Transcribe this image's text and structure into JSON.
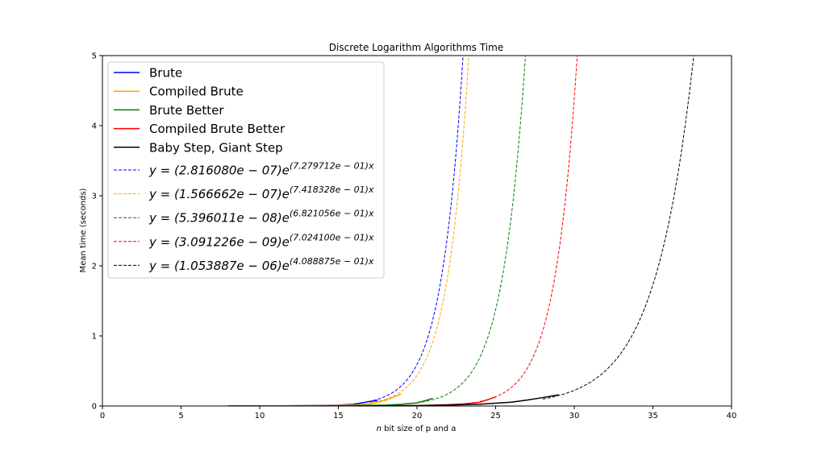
{
  "chart_data": {
    "type": "line",
    "title": "Discrete Logarithm Algorithms Time",
    "xlabel_italic": "n",
    "xlabel": " bit size of p and a",
    "ylabel": "Mean time (seconds)",
    "xlim": [
      0,
      40
    ],
    "ylim": [
      0,
      5
    ],
    "xticks": [
      "0",
      "5",
      "10",
      "15",
      "20",
      "25",
      "30",
      "35",
      "40"
    ],
    "yticks": [
      "0",
      "1",
      "2",
      "3",
      "4",
      "5"
    ],
    "grid": false,
    "legend_position": "top-left",
    "series": [
      {
        "name": "Brute",
        "color": "#0000ff",
        "style": "solid",
        "x": [
          8,
          10,
          12,
          14,
          15,
          16,
          16.5,
          17,
          17.5
        ],
        "y": [
          0.0008,
          0.0018,
          0.004,
          0.008,
          0.013,
          0.025,
          0.045,
          0.065,
          0.08
        ]
      },
      {
        "name": "Compiled Brute",
        "color": "#ffa500",
        "style": "solid",
        "x": [
          10,
          12,
          14,
          16,
          17,
          18,
          19
        ],
        "y": [
          0.0006,
          0.002,
          0.006,
          0.015,
          0.03,
          0.08,
          0.17
        ]
      },
      {
        "name": "Brute Better",
        "color": "#008000",
        "style": "solid",
        "x": [
          12,
          14,
          16,
          18,
          19,
          20,
          20.5,
          21
        ],
        "y": [
          0.0005,
          0.002,
          0.006,
          0.013,
          0.025,
          0.045,
          0.075,
          0.11
        ]
      },
      {
        "name": "Compiled Brute Better",
        "color": "#ff0000",
        "style": "solid",
        "x": [
          16,
          18,
          20,
          22,
          23,
          24,
          24.5,
          25
        ],
        "y": [
          0.0004,
          0.002,
          0.006,
          0.018,
          0.03,
          0.055,
          0.09,
          0.13
        ]
      },
      {
        "name": "Baby Step, Giant Step",
        "color": "#000000",
        "style": "solid",
        "x": [
          16,
          18,
          20,
          22,
          24,
          26,
          27,
          28,
          29
        ],
        "y": [
          0.001,
          0.003,
          0.006,
          0.013,
          0.026,
          0.055,
          0.085,
          0.12,
          0.16
        ]
      }
    ],
    "fits": [
      {
        "label_pre": "y = (2.816080e − 07)e",
        "label_exp": "(7.279712e − 01)x",
        "a": 2.81608e-07,
        "b": 0.7279712,
        "color": "#0000ff",
        "style": "dashed",
        "x_start": 16
      },
      {
        "label_pre": "y = (1.566662e − 07)e",
        "label_exp": "(7.418328e − 01)x",
        "a": 1.566662e-07,
        "b": 0.7418328,
        "color": "#ffa500",
        "style": "dashed",
        "x_start": 17
      },
      {
        "label_pre": "y = (5.396011e − 08)e",
        "label_exp": "(6.821056e − 01)x",
        "a": 5.396011e-08,
        "b": 0.6821056,
        "color": "#008000",
        "style": "dashed",
        "x_start": 20
      },
      {
        "label_pre": "y = (3.091226e − 09)e",
        "label_exp": "(7.024100e − 01)x",
        "a": 3.091226e-09,
        "b": 0.70241,
        "color": "#ff0000",
        "style": "dashed",
        "x_start": 24
      },
      {
        "label_pre": "y = (1.053887e − 06)e",
        "label_exp": "(4.088875e − 01)x",
        "a": 1.053887e-06,
        "b": 0.4088875,
        "color": "#000000",
        "style": "dashed",
        "x_start": 28
      }
    ]
  }
}
